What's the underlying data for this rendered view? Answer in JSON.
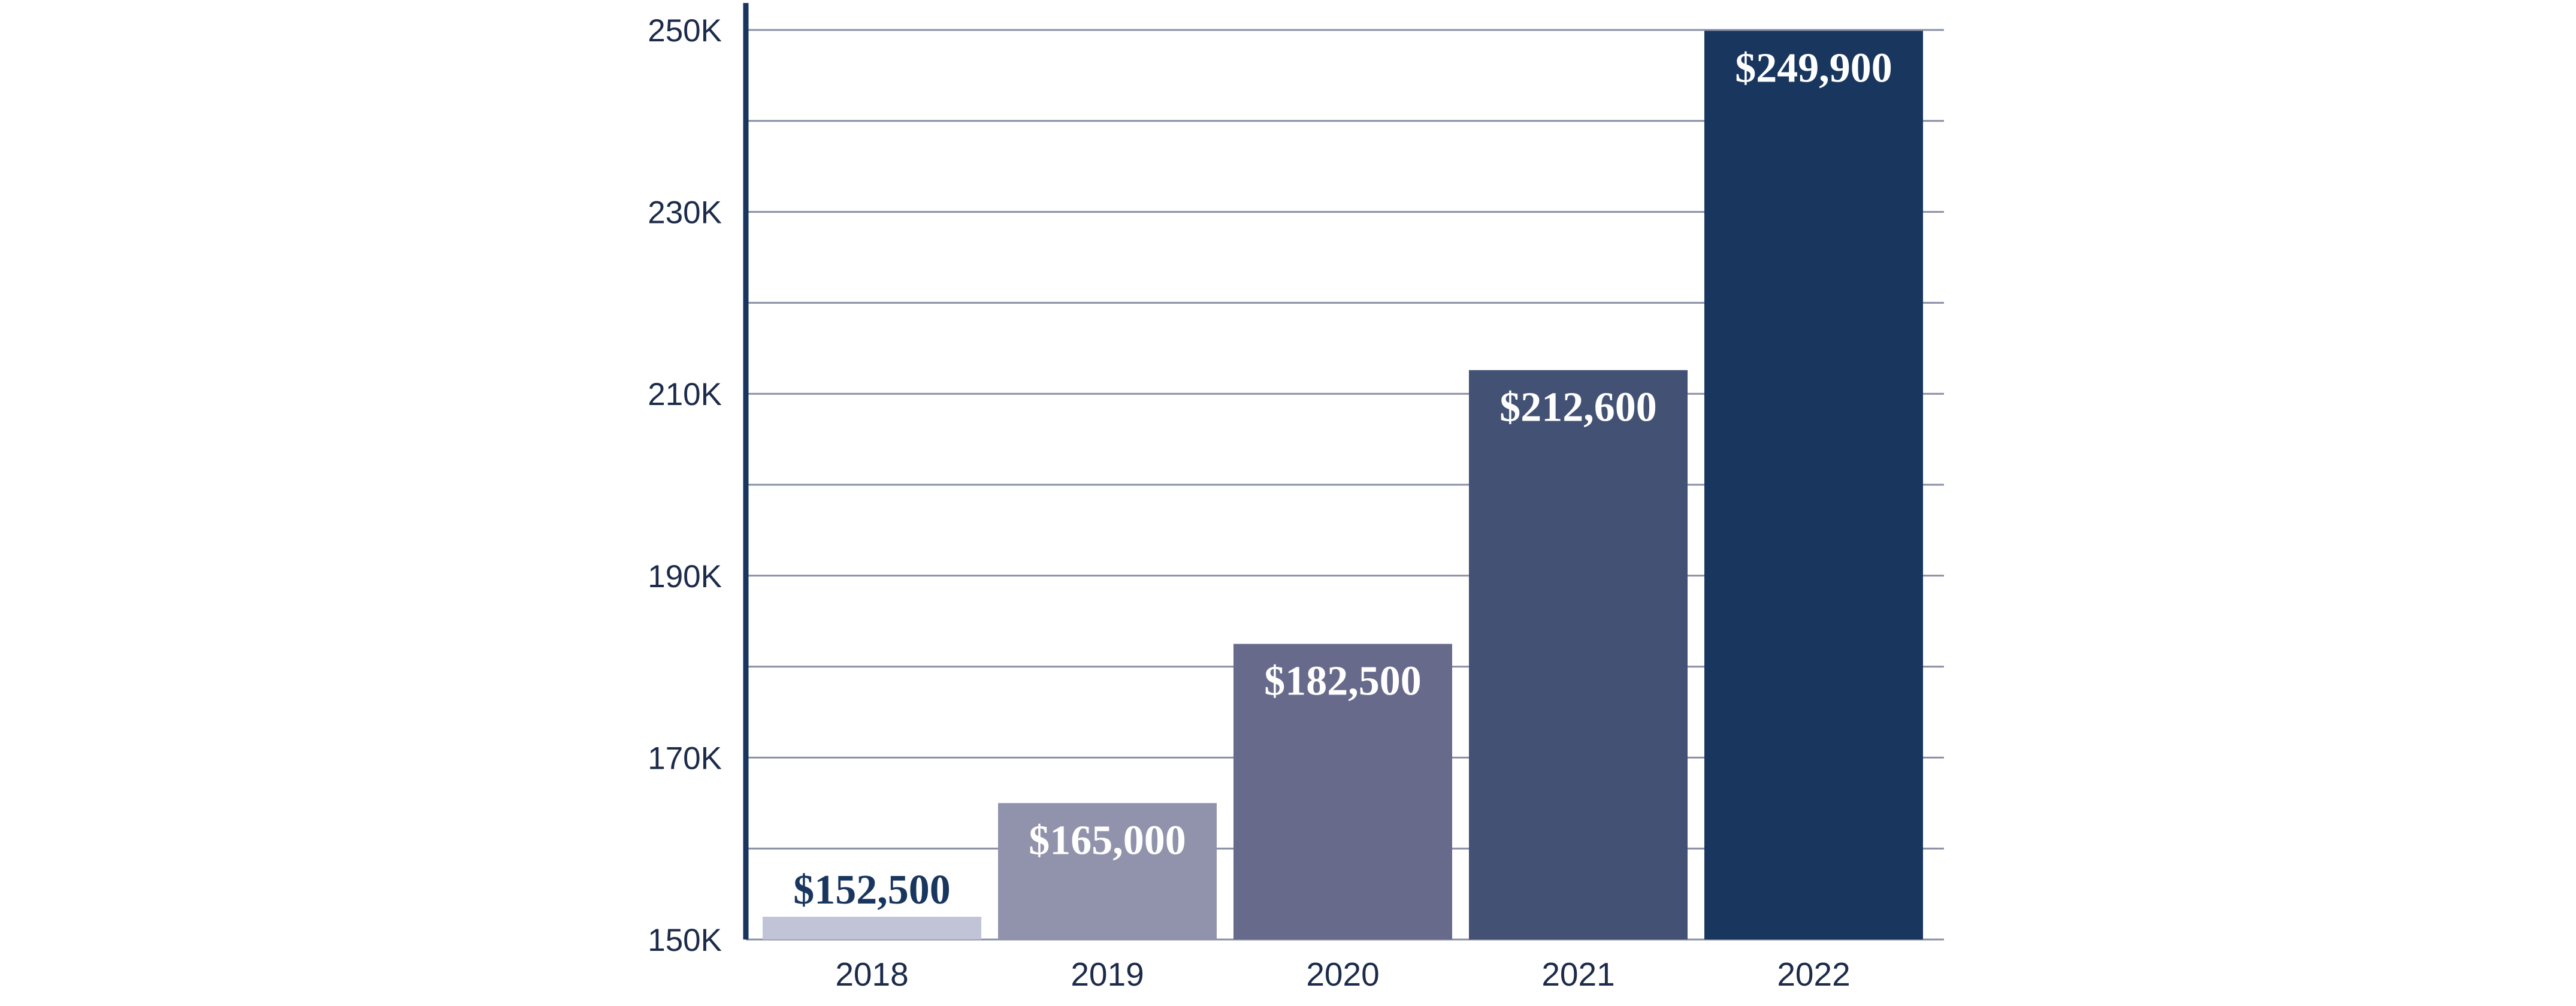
{
  "chart_data": {
    "type": "bar",
    "categories": [
      "2018",
      "2019",
      "2020",
      "2021",
      "2022"
    ],
    "values": [
      152500,
      165000,
      182500,
      212600,
      249900
    ],
    "data_labels": [
      "$152,500",
      "$165,000",
      "$182,500",
      "$212,600",
      "$249,900"
    ],
    "bar_colors": [
      "#c1c3d7",
      "#9093ab",
      "#676a8b",
      "#435274",
      "#19365f"
    ],
    "label_colors": [
      "#19365f",
      "#ffffff",
      "#ffffff",
      "#ffffff",
      "#ffffff"
    ],
    "ylim": [
      150000,
      250000
    ],
    "y_ticks": [
      150000,
      170000,
      190000,
      210000,
      230000,
      250000
    ],
    "y_tick_labels": [
      "150K",
      "170K",
      "190K",
      "210K",
      "230K",
      "250K"
    ],
    "grid_step": 10000,
    "grid": true,
    "title": "",
    "xlabel": "",
    "ylabel": "",
    "axis_color": "#19365f",
    "grid_color": "#8a8fa5",
    "text_color": "#1c2b4a"
  }
}
